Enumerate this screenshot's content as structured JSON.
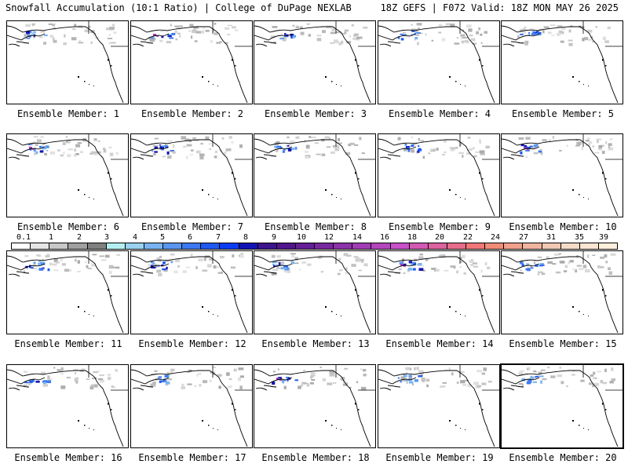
{
  "header": {
    "left": "Snowfall Accumulation (10:1 Ratio) | College of DuPage NEXLAB",
    "right": "18Z GEFS | F072 Valid: 18Z MON MAY 26 2025"
  },
  "colorbar": {
    "labels": [
      "0.1",
      "1",
      "2",
      "3",
      "4",
      "5",
      "6",
      "7",
      "8",
      "9",
      "10",
      "12",
      "14",
      "16",
      "18",
      "20",
      "22",
      "24",
      "27",
      "31",
      "35",
      "39"
    ],
    "colors": [
      "#ffffff",
      "#e6e6e6",
      "#c8c8c8",
      "#a0a0a0",
      "#808080",
      "#b4f0f0",
      "#9ad2f0",
      "#7ab4f0",
      "#5a96f0",
      "#3c78f0",
      "#1e5af0",
      "#0a3cf0",
      "#1414b4",
      "#3c148c",
      "#50148c",
      "#641e96",
      "#7828a0",
      "#8c32aa",
      "#a03cb4",
      "#b446be",
      "#c850c8",
      "#d25ab4",
      "#dc64a0",
      "#e66e8c",
      "#f07878",
      "#f08c78",
      "#f0a08c",
      "#f0b4a0",
      "#f0c8b4",
      "#f5dcc8",
      "#fae6d2",
      "#fff0dc"
    ]
  },
  "panels": [
    {
      "label": "Ensemble Member: 1"
    },
    {
      "label": "Ensemble Member: 2"
    },
    {
      "label": "Ensemble Member: 3"
    },
    {
      "label": "Ensemble Member: 4"
    },
    {
      "label": "Ensemble Member: 5"
    },
    {
      "label": "Ensemble Member: 6"
    },
    {
      "label": "Ensemble Member: 7"
    },
    {
      "label": "Ensemble Member: 8"
    },
    {
      "label": "Ensemble Member: 9"
    },
    {
      "label": "Ensemble Member: 10"
    },
    {
      "label": "Ensemble Member: 11"
    },
    {
      "label": "Ensemble Member: 12"
    },
    {
      "label": "Ensemble Member: 13"
    },
    {
      "label": "Ensemble Member: 14"
    },
    {
      "label": "Ensemble Member: 15"
    },
    {
      "label": "Ensemble Member: 16"
    },
    {
      "label": "Ensemble Member: 17"
    },
    {
      "label": "Ensemble Member: 18"
    },
    {
      "label": "Ensemble Member: 19"
    },
    {
      "label": "Ensemble Member: 20"
    }
  ]
}
